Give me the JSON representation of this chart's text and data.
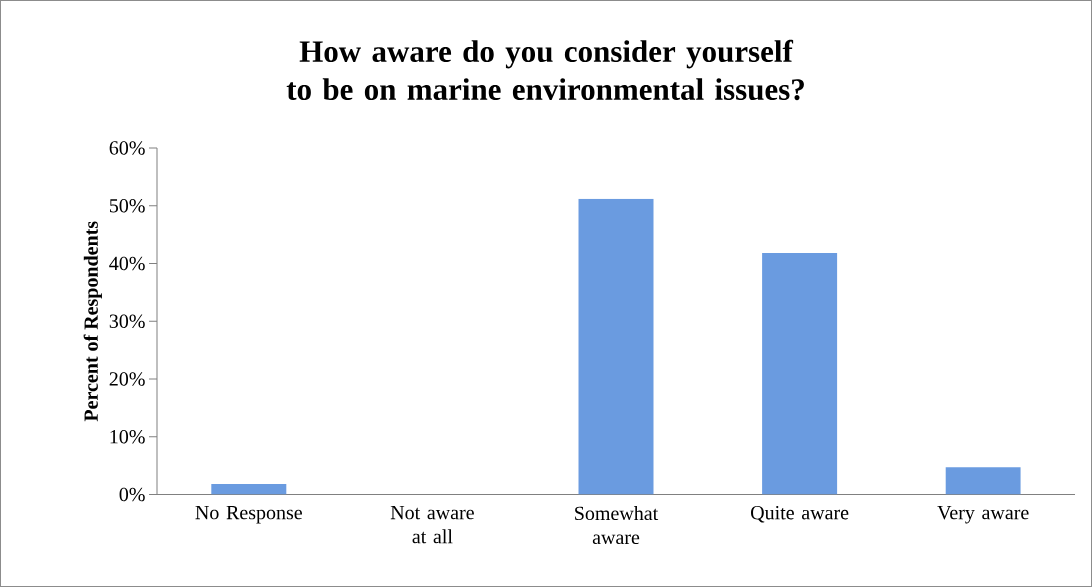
{
  "chart_data": {
    "type": "bar",
    "title": "How aware do you consider yourself to be on marine environmental issues?",
    "ylabel": "Percent of Respondents",
    "categories": [
      "No Response",
      "Not aware at all",
      "Somewhat aware",
      "Quite aware",
      "Very aware"
    ],
    "values": [
      1.8,
      0,
      51.2,
      41.8,
      4.7
    ],
    "color": "#6a9be0",
    "ylim": [
      0,
      60
    ],
    "yticks": [
      {
        "value": 0,
        "label": "0%"
      },
      {
        "value": 10,
        "label": "10%"
      },
      {
        "value": 20,
        "label": "20%"
      },
      {
        "value": 30,
        "label": "30%"
      },
      {
        "value": 40,
        "label": "40%"
      },
      {
        "value": 50,
        "label": "50%"
      },
      {
        "value": 60,
        "label": "60%"
      }
    ],
    "grid": false
  }
}
